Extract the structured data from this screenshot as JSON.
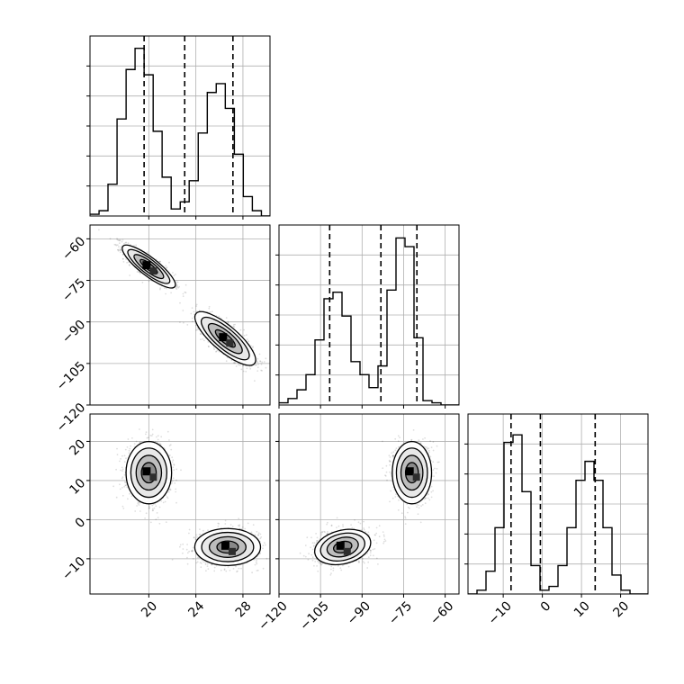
{
  "chart_data": {
    "type": "corner",
    "parameters": [
      {
        "label": "",
        "range": [
          15,
          30.3
        ],
        "ticks": [
          20,
          24,
          28
        ],
        "tick_labels": [
          "20",
          "24",
          "28"
        ]
      },
      {
        "label": "",
        "range": [
          -120,
          -55
        ],
        "ticks": [
          -120,
          -105,
          -90,
          -75,
          -60
        ],
        "tick_labels": [
          "−120",
          "−105",
          "−90",
          "−75",
          "−60"
        ]
      },
      {
        "label": "",
        "range": [
          -19,
          27
        ],
        "ticks": [
          -10,
          0,
          10,
          20
        ],
        "tick_labels": [
          "−10",
          "0",
          "10",
          "20"
        ]
      }
    ],
    "grid": true,
    "histograms": [
      {
        "param": 0,
        "bin_edges": [
          15.0,
          15.77,
          16.53,
          17.3,
          18.07,
          18.83,
          19.6,
          20.37,
          21.13,
          21.9,
          22.67,
          23.43,
          24.2,
          24.97,
          25.73,
          26.5,
          27.27,
          28.03,
          28.8,
          29.57,
          30.3
        ],
        "counts": [
          1,
          3,
          18,
          55,
          83,
          95,
          80,
          48,
          22,
          4,
          8,
          20,
          47,
          70,
          75,
          61,
          35,
          11,
          3,
          0
        ],
        "ylim": [
          0,
          102
        ],
        "quantiles": [
          19.6,
          23.05,
          27.15
        ]
      },
      {
        "param": 1,
        "bin_edges": [
          -120.0,
          -116.75,
          -113.5,
          -110.25,
          -107.0,
          -103.75,
          -100.5,
          -97.25,
          -94.0,
          -90.75,
          -87.5,
          -84.25,
          -81.0,
          -77.75,
          -74.5,
          -71.25,
          -68.0,
          -64.75,
          -61.5,
          -58.25,
          -55.0
        ],
        "counts": [
          1,
          3,
          7,
          14,
          30,
          49,
          52,
          41,
          20,
          14,
          8,
          18,
          53,
          77,
          73,
          31,
          2,
          1,
          0,
          0
        ],
        "ylim": [
          0,
          83
        ],
        "quantiles": [
          -101.7,
          -83.2,
          -70.2
        ]
      },
      {
        "param": 2,
        "bin_edges": [
          -19.0,
          -16.7,
          -14.4,
          -12.1,
          -9.8,
          -7.5,
          -5.2,
          -2.9,
          -0.6,
          1.7,
          4.0,
          6.3,
          8.6,
          10.9,
          13.2,
          15.5,
          17.8,
          20.1,
          22.4,
          24.7,
          27.0
        ],
        "counts": [
          0,
          2,
          12,
          35,
          80,
          84,
          54,
          15,
          2,
          4,
          15,
          35,
          60,
          70,
          60,
          35,
          10,
          2,
          0,
          0
        ],
        "ylim": [
          0,
          95
        ],
        "quantiles": [
          -8.0,
          -0.5,
          13.5
        ]
      }
    ],
    "pairs": [
      {
        "x_param": 0,
        "y_param": 1,
        "modes": [
          {
            "center": [
              20.0,
              -70.0
            ],
            "sx": 1.05,
            "sy": 3.6,
            "rho": -0.85,
            "weight": 0.5
          },
          {
            "center": [
              26.5,
              -96.0
            ],
            "sx": 1.2,
            "sy": 4.5,
            "rho": -0.8,
            "weight": 0.5
          }
        ]
      },
      {
        "x_param": 0,
        "y_param": 2,
        "modes": [
          {
            "center": [
              20.0,
              12.0
            ],
            "sx": 0.9,
            "sy": 3.7,
            "rho": 0.0,
            "weight": 0.5
          },
          {
            "center": [
              26.7,
              -7.0
            ],
            "sx": 1.3,
            "sy": 2.2,
            "rho": 0.0,
            "weight": 0.5
          }
        ]
      },
      {
        "x_param": 1,
        "y_param": 2,
        "modes": [
          {
            "center": [
              -72.0,
              12.0
            ],
            "sx": 3.3,
            "sy": 3.7,
            "rho": 0.0,
            "weight": 0.5
          },
          {
            "center": [
              -97.0,
              -7.0
            ],
            "sx": 4.7,
            "sy": 2.1,
            "rho": 0.25,
            "weight": 0.5
          }
        ]
      }
    ],
    "contour_levels_sigma": [
      0.5,
      1.0,
      1.5,
      2.0
    ]
  }
}
